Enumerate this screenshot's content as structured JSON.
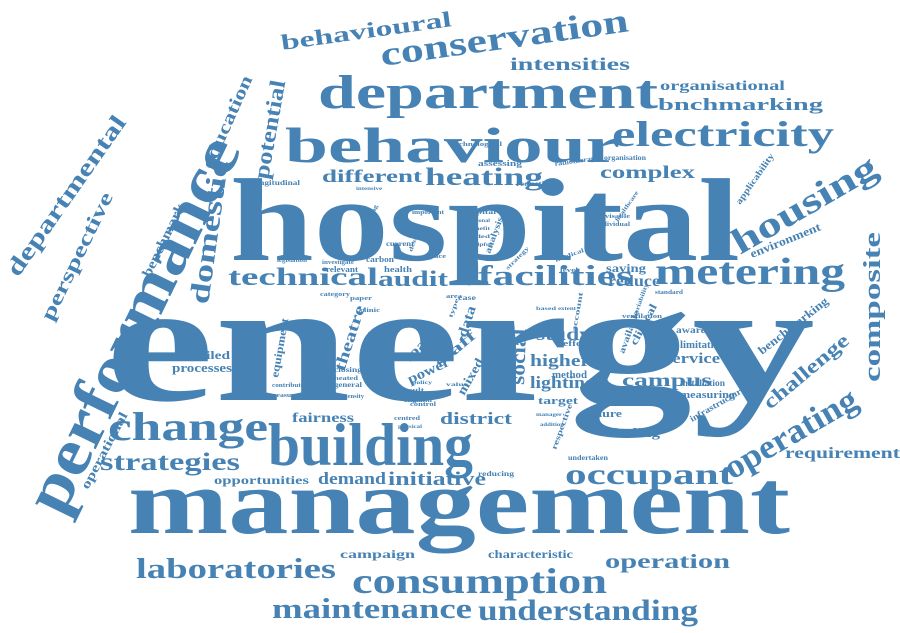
{
  "word_cloud": {
    "color": "#4682b4",
    "words": [
      "energy",
      "hospital",
      "management",
      "building",
      "performance",
      "behaviour",
      "department",
      "consumption",
      "conservation",
      "electricity",
      "metering",
      "housing",
      "change",
      "operating",
      "occupant",
      "laboratories",
      "maintenance",
      "understanding",
      "technical",
      "facilities",
      "strategies",
      "heating",
      "domestic",
      "departmental",
      "perspective",
      "benchmark",
      "potential",
      "education",
      "behavioural",
      "intensities",
      "organisational",
      "bnchmarking",
      "complex",
      "audit",
      "composite",
      "challenge",
      "operation",
      "campus",
      "district",
      "initiative",
      "demand",
      "different",
      "requirement",
      "benchmarking",
      "environment",
      "applicability",
      "social",
      "study",
      "higher",
      "lighting",
      "service",
      "finding",
      "fairness",
      "processes",
      "detailed",
      "opportunities",
      "campaign",
      "characteristic",
      "operational",
      "reduce",
      "saving",
      "theatre",
      "staff",
      "power",
      "load",
      "data",
      "equipment",
      "mixed",
      "user",
      "target",
      "tunure",
      "measuring",
      "limitation",
      "installation",
      "awareness",
      "infrastructure",
      "clinical",
      "available",
      "method",
      "effort",
      "longitudinal",
      "assessing",
      "radiotherapy",
      "organisation",
      "reduction",
      "technological",
      "health",
      "carbon",
      "relevant",
      "legislation",
      "investigate",
      "current",
      "dwelling",
      "important",
      "national",
      "benefit",
      "individual",
      "advisable",
      "space",
      "ventilation",
      "standard",
      "respective",
      "undertaken",
      "measure",
      "closing",
      "general",
      "intensity",
      "evaluative",
      "contribute",
      "heated",
      "heat",
      "paper",
      "category",
      "clinic",
      "centred",
      "physical",
      "control",
      "reducing",
      "england",
      "case",
      "area",
      "result",
      "policy",
      "value",
      "manager",
      "based",
      "extent",
      "variability",
      "hospital",
      "analysis",
      "strategy",
      "level",
      "type",
      "account",
      "added",
      "helpful",
      "design",
      "sector",
      "healthcare",
      "medical",
      "addition",
      "intensive"
    ]
  }
}
